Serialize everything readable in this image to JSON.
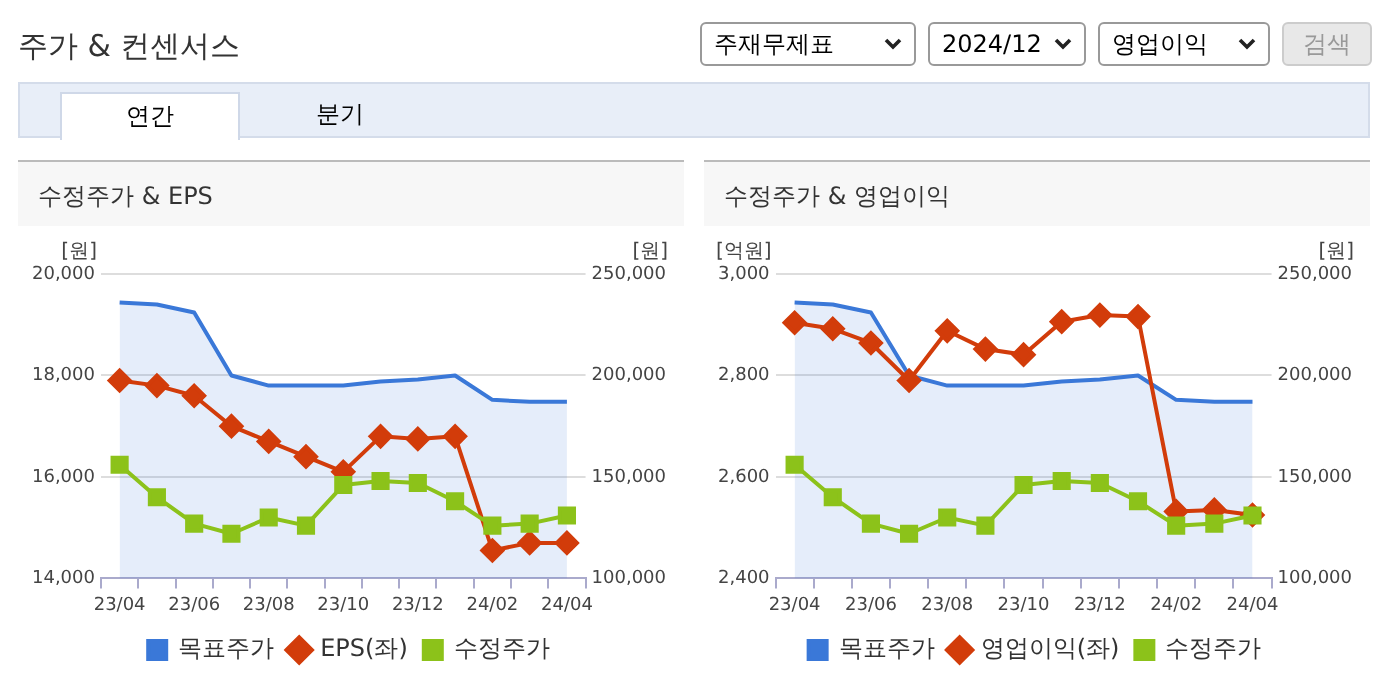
{
  "chart_data": [
    {
      "type": "other",
      "title": "주가 & 컨센서스",
      "annotations": [
        "주재무제표",
        "2024/12",
        "영업이익",
        "검색",
        "연간",
        "분기"
      ]
    },
    {
      "type": "line",
      "title": "수정주가 & EPS",
      "ylabel": "[원]",
      "y2label": "[원]",
      "categories": [
        "23/04",
        null,
        "23/06",
        null,
        "23/08",
        null,
        "23/10",
        null,
        "23/12",
        null,
        "24/02",
        null,
        "24/04"
      ],
      "series": [
        {
          "name": "목표주가",
          "type": "area",
          "axis": "y2",
          "color": "#3a78d8",
          "marker": "none",
          "values": [
            236000,
            235000,
            231000,
            200000,
            195000,
            195000,
            195000,
            197000,
            198000,
            200000,
            188000,
            187000,
            187000
          ]
        },
        {
          "name": "EPS(좌)",
          "color": "#d23c0a",
          "marker": "diamond",
          "values": [
            17900,
            17800,
            17600,
            17000,
            16700,
            16400,
            16100,
            16800,
            16750,
            16800,
            14550,
            14700,
            14700
          ]
        },
        {
          "name": "수정주가",
          "axis": "y2",
          "color": "#8cc21a",
          "marker": "square",
          "values": [
            156000,
            140000,
            127000,
            122000,
            130000,
            126000,
            146000,
            148000,
            147000,
            138000,
            126000,
            127000,
            131000
          ]
        }
      ],
      "ylim": [
        14000,
        20000
      ],
      "yticks": [
        {
          "value": 14000,
          "label": "14,000"
        },
        {
          "value": 16000,
          "label": "16,000"
        },
        {
          "value": 18000,
          "label": "18,000"
        },
        {
          "value": 20000,
          "label": "20,000"
        }
      ],
      "y2lim": [
        100000,
        250000
      ],
      "y2ticks": [
        {
          "value": 100000,
          "label": "100,000"
        },
        {
          "value": 150000,
          "label": "150,000"
        },
        {
          "value": 200000,
          "label": "200,000"
        },
        {
          "value": 250000,
          "label": "250,000"
        }
      ],
      "grid": "y",
      "legend": "bottom"
    },
    {
      "type": "line",
      "title": "수정주가 & 영업이익",
      "ylabel": "[억원]",
      "y2label": "[원]",
      "categories": [
        "23/04",
        null,
        "23/06",
        null,
        "23/08",
        null,
        "23/10",
        null,
        "23/12",
        null,
        "24/02",
        null,
        "24/04"
      ],
      "series": [
        {
          "name": "목표주가",
          "type": "area",
          "axis": "y2",
          "color": "#3a78d8",
          "marker": "none",
          "values": [
            236000,
            235000,
            231000,
            200000,
            195000,
            195000,
            195000,
            197000,
            198000,
            200000,
            188000,
            187000,
            187000
          ]
        },
        {
          "name": "영업이익(좌)",
          "color": "#d23c0a",
          "marker": "diamond",
          "values": [
            2904,
            2892,
            2864,
            2790,
            2888,
            2852,
            2841,
            2906,
            2919,
            2916,
            2532,
            2535,
            2525
          ]
        },
        {
          "name": "수정주가",
          "axis": "y2",
          "color": "#8cc21a",
          "marker": "square",
          "values": [
            156000,
            140000,
            127000,
            122000,
            130000,
            126000,
            146000,
            148000,
            147000,
            138000,
            126000,
            127000,
            131000
          ]
        }
      ],
      "ylim": [
        2400,
        3000
      ],
      "yticks": [
        {
          "value": 2400,
          "label": "2,400"
        },
        {
          "value": 2600,
          "label": "2,600"
        },
        {
          "value": 2800,
          "label": "2,800"
        },
        {
          "value": 3000,
          "label": "3,000"
        }
      ],
      "y2lim": [
        100000,
        250000
      ],
      "y2ticks": [
        {
          "value": 100000,
          "label": "100,000"
        },
        {
          "value": 150000,
          "label": "150,000"
        },
        {
          "value": 200000,
          "label": "200,000"
        },
        {
          "value": 250000,
          "label": "250,000"
        }
      ],
      "grid": "y",
      "legend": "bottom"
    }
  ]
}
